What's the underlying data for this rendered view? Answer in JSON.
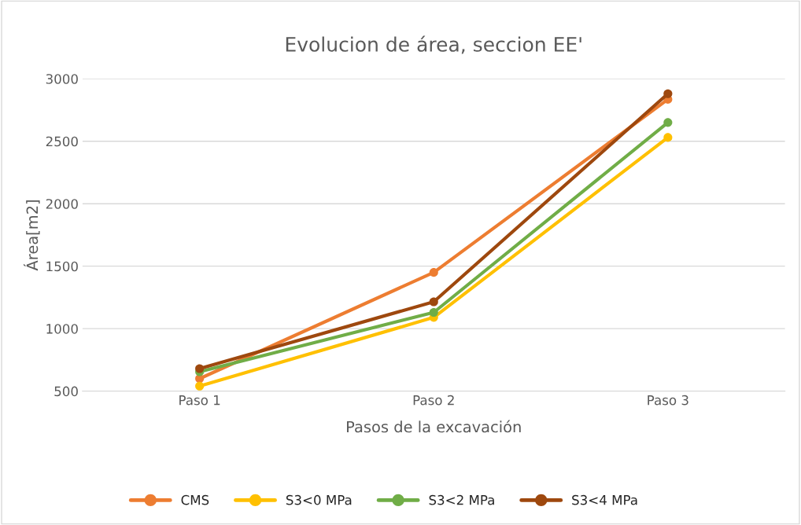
{
  "chart_data": {
    "type": "line",
    "title": "Evolucion de área, seccion EE'",
    "xlabel": "Pasos de la excavación",
    "ylabel": "Área[m2]",
    "categories": [
      "Paso 1",
      "Paso 2",
      "Paso 3"
    ],
    "series": [
      {
        "name": "CMS",
        "color": "#ed7d31",
        "values": [
          600,
          1450,
          2835
        ]
      },
      {
        "name": "S3<0 MPa",
        "color": "#ffc000",
        "values": [
          540,
          1090,
          2530
        ]
      },
      {
        "name": "S3<2 MPa",
        "color": "#70ad47",
        "values": [
          655,
          1130,
          2650
        ]
      },
      {
        "name": "S3<4 MPa",
        "color": "#9e480e",
        "values": [
          680,
          1215,
          2880
        ]
      }
    ],
    "ylim": [
      500,
      3000
    ],
    "yticks": [
      500,
      1000,
      1500,
      2000,
      2500,
      3000
    ],
    "grid": "y",
    "legend": "bottom",
    "marker": "circle",
    "line_style": "solid"
  }
}
